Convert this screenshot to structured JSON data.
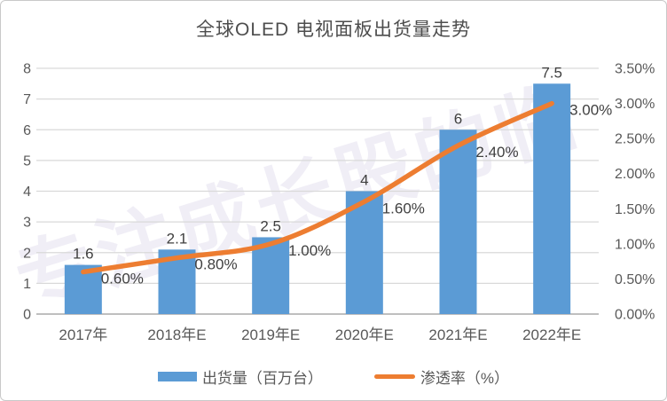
{
  "title": "全球OLED 电视面板出货量走势",
  "watermark": "专注成长股的临",
  "colors": {
    "bar": "#5B9BD5",
    "line": "#ED7D31",
    "grid": "#D9D9D9",
    "axis_line": "#BFBFBF",
    "tick_text": "#595959",
    "data_label": "#3f3f3f",
    "border": "#C9C9C9"
  },
  "legend": [
    {
      "label": "出货量（百万台）",
      "type": "bar"
    },
    {
      "label": "渗透率（%）",
      "type": "line"
    }
  ],
  "chart_data": {
    "type": "combo",
    "title": "全球OLED 电视面板出货量走势",
    "categories": [
      "2017年",
      "2018年E",
      "2019年E",
      "2020年E",
      "2021年E",
      "2022年E"
    ],
    "series": [
      {
        "name": "出货量（百万台）",
        "type": "bar",
        "axis": "left",
        "values": [
          1.6,
          2.1,
          2.5,
          4,
          6,
          7.5
        ],
        "labels": [
          "1.6",
          "2.1",
          "2.5",
          "4",
          "6",
          "7.5"
        ],
        "color": "#5B9BD5"
      },
      {
        "name": "渗透率（%）",
        "type": "line",
        "axis": "right",
        "values": [
          0.6,
          0.8,
          1.0,
          1.6,
          2.4,
          3.0
        ],
        "labels": [
          "0.60%",
          "0.80%",
          "1.00%",
          "1.60%",
          "2.40%",
          "3.00%"
        ],
        "color": "#ED7D31"
      }
    ],
    "left_axis": {
      "min": 0,
      "max": 8,
      "step": 1,
      "ticks": [
        "0",
        "1",
        "2",
        "3",
        "4",
        "5",
        "6",
        "7",
        "8"
      ]
    },
    "right_axis": {
      "min": 0,
      "max": 3.5,
      "step": 0.5,
      "ticks": [
        "0.00%",
        "0.50%",
        "1.00%",
        "1.50%",
        "2.00%",
        "2.50%",
        "3.00%",
        "3.50%"
      ]
    },
    "grid": true,
    "legend_position": "bottom"
  }
}
